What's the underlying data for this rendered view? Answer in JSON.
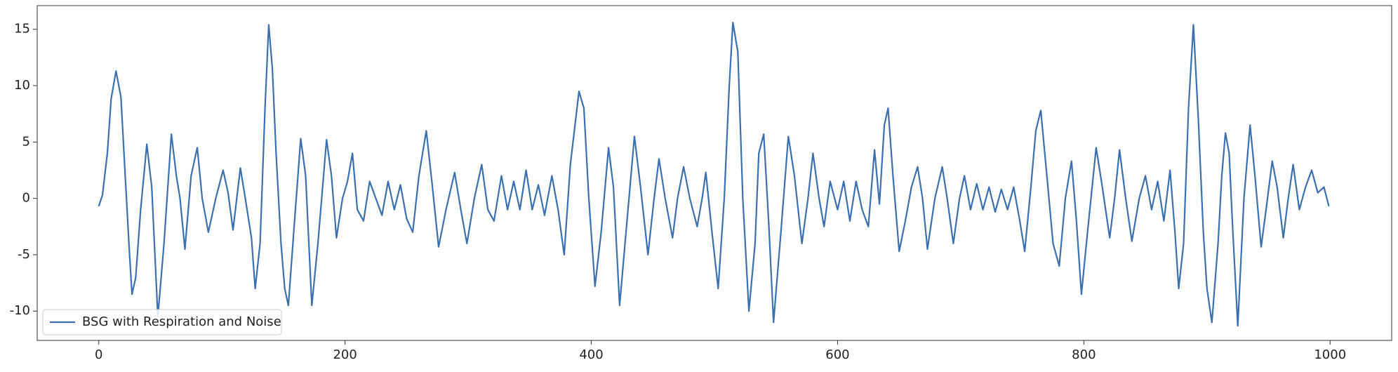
{
  "chart_data": {
    "type": "line",
    "x": [
      0,
      3,
      7,
      10,
      14,
      18,
      22,
      25,
      27,
      30,
      34,
      39,
      43,
      48,
      53,
      59,
      63,
      66,
      70,
      75,
      80,
      84,
      89,
      95,
      101,
      105,
      109,
      115,
      119,
      124,
      127,
      131,
      135,
      138,
      141,
      144,
      148,
      151,
      154,
      159,
      164,
      168,
      173,
      178,
      185,
      189,
      193,
      198,
      202,
      206,
      210,
      215,
      220,
      225,
      230,
      235,
      240,
      245,
      250,
      255,
      260,
      266,
      271,
      276,
      282,
      289,
      294,
      299,
      305,
      311,
      316,
      321,
      327,
      332,
      337,
      342,
      347,
      352,
      357,
      362,
      368,
      373,
      378,
      383,
      390,
      394,
      398,
      403,
      408,
      414,
      418,
      423,
      429,
      435,
      440,
      446,
      451,
      455,
      460,
      466,
      470,
      475,
      480,
      486,
      490,
      493,
      498,
      503,
      508,
      512,
      515,
      519,
      523,
      528,
      533,
      536,
      540,
      544,
      548,
      554,
      560,
      565,
      571,
      576,
      580,
      585,
      589,
      594,
      600,
      605,
      610,
      615,
      620,
      625,
      630,
      634,
      638,
      641,
      645,
      650,
      655,
      660,
      665,
      669,
      673,
      679,
      685,
      689,
      694,
      699,
      703,
      708,
      713,
      718,
      723,
      728,
      733,
      738,
      743,
      748,
      752,
      757,
      761,
      765,
      770,
      775,
      780,
      785,
      790,
      794,
      798,
      803,
      810,
      815,
      821,
      825,
      829,
      834,
      839,
      845,
      850,
      855,
      860,
      865,
      870,
      874,
      877,
      881,
      885,
      889,
      893,
      897,
      900,
      904,
      909,
      912,
      915,
      918,
      921,
      925,
      930,
      935,
      939,
      944,
      948,
      953,
      957,
      962,
      966,
      970,
      975,
      980,
      985,
      990,
      995,
      999
    ],
    "series": [
      {
        "name": "BSG with Respiration and Noise",
        "color": "#3a70b0",
        "values": [
          -0.7,
          0.3,
          4,
          8.8,
          11.3,
          9,
          1,
          -5,
          -8.5,
          -7,
          -1,
          4.8,
          1,
          -10.5,
          -4,
          5.7,
          2,
          0,
          -4.5,
          2,
          4.5,
          0,
          -3,
          0,
          2.5,
          0.5,
          -2.8,
          2.7,
          0,
          -3.5,
          -8,
          -4,
          8,
          15.4,
          11.5,
          4,
          -4,
          -8,
          -9.5,
          -2,
          5.3,
          2,
          -9.5,
          -4,
          5.2,
          2,
          -3.5,
          0,
          1.5,
          4,
          -1,
          -2,
          1.5,
          0,
          -1.5,
          1.5,
          -1,
          1.2,
          -1.8,
          -3,
          2,
          6,
          1,
          -4.3,
          -1,
          2.3,
          -1,
          -4,
          0,
          3,
          -1,
          -2,
          2,
          -1,
          1.5,
          -1,
          2.5,
          -1,
          1.2,
          -1.5,
          2,
          -1,
          -5,
          3,
          9.5,
          8,
          0,
          -7.8,
          -3,
          4.5,
          1,
          -9.5,
          -2,
          5.5,
          1,
          -5,
          0,
          3.5,
          0,
          -3.5,
          0,
          2.8,
          0,
          -2.5,
          0,
          2.3,
          -3,
          -8,
          0,
          10,
          15.6,
          13,
          0,
          -10,
          -4,
          4,
          5.7,
          -2,
          -11,
          -3,
          5.5,
          2,
          -4,
          0,
          4,
          0,
          -2.5,
          1.5,
          -1,
          1.5,
          -2,
          1.5,
          -1,
          -2.5,
          4.3,
          -0.5,
          6.5,
          8,
          2,
          -4.7,
          -2,
          1,
          2.8,
          0,
          -4.5,
          0,
          2.8,
          0,
          -4,
          0,
          2,
          -1,
          1.3,
          -1,
          1,
          -1.2,
          0.8,
          -1,
          1,
          -2,
          -4.7,
          1,
          6,
          7.8,
          2,
          -4,
          -6,
          0,
          3.3,
          -2,
          -8.5,
          -3,
          4.5,
          1,
          -3.5,
          0,
          4.3,
          0,
          -3.8,
          0,
          2,
          -1,
          1.5,
          -2,
          2.5,
          -3,
          -8,
          -4,
          8,
          15.4,
          7,
          -3,
          -8,
          -11,
          -4,
          2,
          5.8,
          4,
          -3,
          -11.3,
          0,
          6.5,
          2,
          -4.3,
          -1,
          3.3,
          1,
          -3.5,
          0,
          3,
          -1,
          1,
          2.5,
          0.5,
          1,
          -0.7
        ]
      }
    ],
    "xlim": [
      -50,
      1050
    ],
    "ylim": [
      -12.6,
      17.1
    ],
    "xticks": [
      0,
      200,
      400,
      600,
      800,
      1000
    ],
    "yticks": [
      -10,
      -5,
      0,
      5,
      10,
      15
    ],
    "legend": "lower left"
  }
}
